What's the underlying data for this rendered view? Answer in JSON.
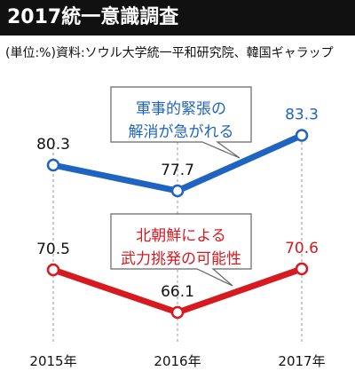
{
  "title": "2017統一意識調査",
  "source": "(単位:%)資料:ソウル大学統一平和研究院、韓国ギャラップ",
  "colors": {
    "blue": "#1f64c0",
    "red": "#d71920",
    "title_bg": "#111111"
  },
  "chart_data": {
    "type": "line",
    "categories": [
      "2015年",
      "2016年",
      "2017年"
    ],
    "series": [
      {
        "name": "軍事的緊張の解消が急がれる",
        "name_lines": [
          "軍事的緊張の",
          "解消が急がれる"
        ],
        "values": [
          80.3,
          77.7,
          83.3
        ],
        "labels": [
          "80.3",
          "77.7",
          "83.3"
        ],
        "color": "#1f64c0"
      },
      {
        "name": "北朝鮮による武力挑発の可能性",
        "name_lines": [
          "北朝鮮による",
          "武力挑発の可能性"
        ],
        "values": [
          70.5,
          66.1,
          70.6
        ],
        "labels": [
          "70.5",
          "66.1",
          "70.6"
        ],
        "color": "#d71920"
      }
    ],
    "grid": "vertical dashed",
    "legend": "callout boxes"
  }
}
